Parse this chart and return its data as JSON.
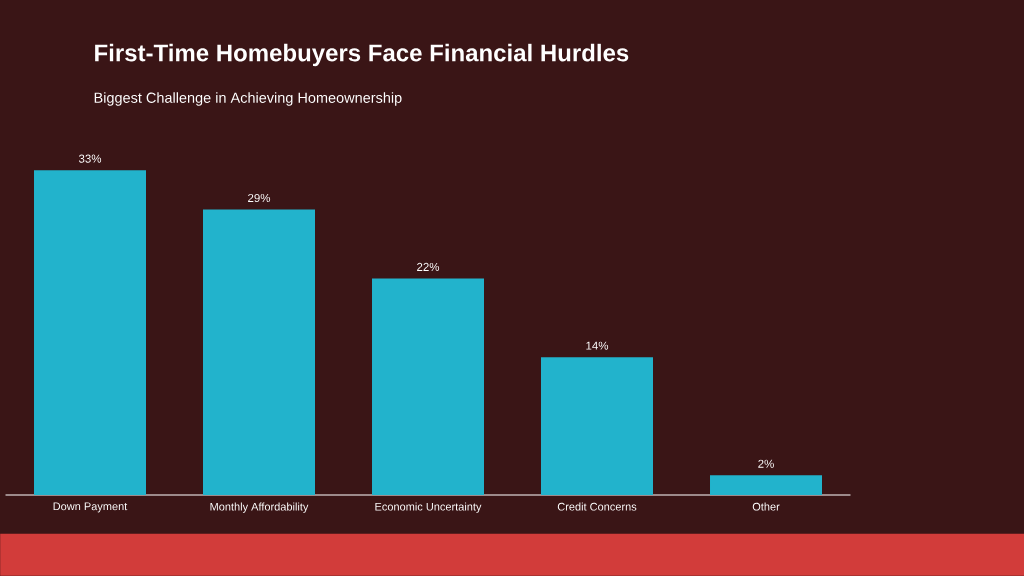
{
  "chart_data": {
    "type": "bar",
    "title": "First-Time Homebuyers Face Financial Hurdles",
    "subtitle": "Biggest Challenge in Achieving Homeownership",
    "categories": [
      "Down Payment",
      "Monthly Affordability",
      "Economic Uncertainty",
      "Credit Concerns",
      "Other"
    ],
    "values": [
      33,
      29,
      22,
      14,
      2
    ],
    "color": "#22b3cc",
    "value_labels": [
      "33%",
      "29%",
      "22%",
      "14%",
      "2%"
    ]
  }
}
